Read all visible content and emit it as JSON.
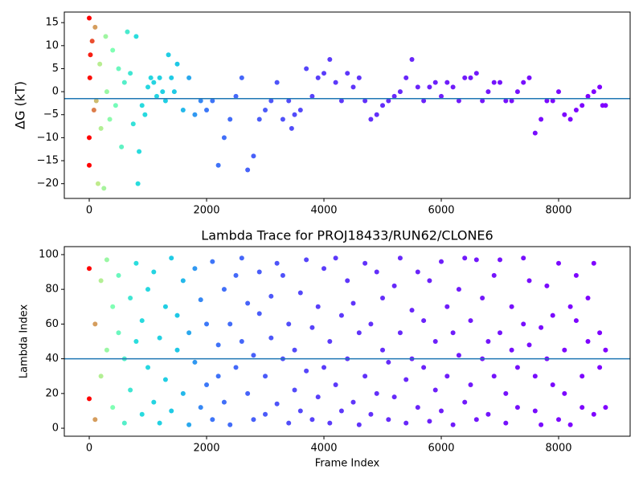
{
  "chart_data": [
    {
      "type": "scatter",
      "ylabel": "ΔG (kT)",
      "xlim": [
        -425,
        9219
      ],
      "xticks": [
        0,
        2000,
        4000,
        6000,
        8000
      ],
      "ylim": [
        -23.2,
        17.3
      ],
      "yticks": [
        {
          "value": -20,
          "label": "−20"
        },
        {
          "value": -15,
          "label": "−15"
        },
        {
          "value": -10,
          "label": "−10"
        },
        {
          "value": -5,
          "label": "−5"
        },
        0,
        5,
        10,
        15
      ],
      "hline": {
        "value": -1.5,
        "color": "#1f77b4"
      },
      "color_stops": [
        {
          "x": 0,
          "color": "#ff0000"
        },
        {
          "x": 150,
          "color": "#c0eb8c"
        },
        {
          "x": 400,
          "color": "#80ffb4"
        },
        {
          "x": 800,
          "color": "#2adddd"
        },
        {
          "x": 1500,
          "color": "#1ec8e6"
        },
        {
          "x": 2000,
          "color": "#3c78f8"
        },
        {
          "x": 4000,
          "color": "#5a3cfa"
        },
        {
          "x": 6000,
          "color": "#6e1efa"
        },
        {
          "x": 8800,
          "color": "#8000ff"
        }
      ],
      "x": [
        0,
        0,
        0,
        10,
        20,
        50,
        80,
        100,
        120,
        150,
        180,
        200,
        250,
        280,
        300,
        350,
        400,
        450,
        500,
        550,
        600,
        650,
        700,
        750,
        800,
        830,
        850,
        900,
        950,
        1000,
        1050,
        1100,
        1150,
        1200,
        1250,
        1300,
        1350,
        1400,
        1450,
        1500,
        1600,
        1700,
        1800,
        1900,
        2000,
        2100,
        2200,
        2300,
        2400,
        2500,
        2600,
        2700,
        2800,
        2900,
        3000,
        3100,
        3200,
        3300,
        3400,
        3450,
        3500,
        3600,
        3700,
        3800,
        3900,
        4000,
        4100,
        4200,
        4300,
        4400,
        4500,
        4600,
        4700,
        4800,
        4900,
        5000,
        5100,
        5200,
        5300,
        5400,
        5500,
        5600,
        5700,
        5800,
        5900,
        6000,
        6100,
        6200,
        6300,
        6400,
        6500,
        6600,
        6700,
        6800,
        6900,
        7000,
        7100,
        7200,
        7300,
        7400,
        7500,
        7600,
        7700,
        7800,
        7900,
        8000,
        8100,
        8200,
        8300,
        8400,
        8500,
        8600,
        8700,
        8750,
        8800
      ],
      "values": [
        16,
        -10,
        -16,
        3,
        8,
        11,
        -4,
        14,
        -2,
        -20,
        6,
        -8,
        -21,
        12,
        0,
        -6,
        9,
        -3,
        5,
        -12,
        2,
        13,
        4,
        -7,
        12,
        -20,
        -13,
        -3,
        -5,
        1,
        3,
        2,
        -1,
        3,
        0,
        -2,
        8,
        3,
        0,
        6,
        -4,
        3,
        -5,
        -2,
        -4,
        -2,
        -16,
        -10,
        -6,
        -1,
        3,
        -17,
        -14,
        -6,
        -4,
        -2,
        2,
        -6,
        -2,
        -8,
        -5,
        -4,
        5,
        -1,
        3,
        4,
        7,
        2,
        -2,
        4,
        1,
        3,
        -2,
        -6,
        -5,
        -3,
        -2,
        -1,
        0,
        3,
        7,
        1,
        -2,
        1,
        2,
        -1,
        2,
        1,
        -2,
        3,
        3,
        4,
        -2,
        0,
        2,
        2,
        -2,
        -2,
        0,
        2,
        3,
        -9,
        -6,
        -2,
        -2,
        0,
        -5,
        -6,
        -4,
        -3,
        -1,
        0,
        1,
        -3,
        -3
      ]
    },
    {
      "type": "scatter",
      "title": "Lambda Trace for PROJ18433/RUN62/CLONE6",
      "xlabel": "Frame Index",
      "ylabel": "Lambda Index",
      "xlim": [
        -425,
        9219
      ],
      "xticks": [
        0,
        2000,
        4000,
        6000,
        8000
      ],
      "ylim": [
        -4.6,
        104.6
      ],
      "yticks": [
        0,
        20,
        40,
        60,
        80,
        100
      ],
      "hline": {
        "value": 40,
        "color": "#1f77b4"
      },
      "color_stops": [
        {
          "x": 0,
          "color": "#ff0000"
        },
        {
          "x": 150,
          "color": "#c0eb8c"
        },
        {
          "x": 400,
          "color": "#80ffb4"
        },
        {
          "x": 800,
          "color": "#2adddd"
        },
        {
          "x": 1500,
          "color": "#1ec8e6"
        },
        {
          "x": 2000,
          "color": "#3c78f8"
        },
        {
          "x": 4000,
          "color": "#5a3cfa"
        },
        {
          "x": 6000,
          "color": "#6e1efa"
        },
        {
          "x": 8800,
          "color": "#8000ff"
        }
      ],
      "x": [
        0,
        0,
        100,
        100,
        200,
        200,
        300,
        300,
        400,
        400,
        500,
        500,
        600,
        600,
        700,
        700,
        800,
        800,
        900,
        900,
        1000,
        1000,
        1100,
        1100,
        1200,
        1200,
        1300,
        1300,
        1400,
        1400,
        1500,
        1500,
        1600,
        1600,
        1700,
        1700,
        1800,
        1800,
        1900,
        1900,
        2000,
        2000,
        2100,
        2100,
        2200,
        2200,
        2300,
        2300,
        2400,
        2400,
        2500,
        2500,
        2600,
        2600,
        2700,
        2700,
        2800,
        2800,
        2900,
        2900,
        3000,
        3000,
        3100,
        3100,
        3200,
        3200,
        3300,
        3300,
        3400,
        3400,
        3500,
        3500,
        3600,
        3600,
        3700,
        3700,
        3800,
        3800,
        3900,
        3900,
        4000,
        4000,
        4100,
        4100,
        4200,
        4200,
        4300,
        4300,
        4400,
        4400,
        4500,
        4500,
        4600,
        4600,
        4700,
        4700,
        4800,
        4800,
        4900,
        4900,
        5000,
        5000,
        5100,
        5100,
        5200,
        5200,
        5300,
        5300,
        5400,
        5400,
        5500,
        5500,
        5600,
        5600,
        5700,
        5700,
        5800,
        5800,
        5900,
        5900,
        6000,
        6000,
        6100,
        6100,
        6200,
        6200,
        6300,
        6300,
        6400,
        6400,
        6500,
        6500,
        6600,
        6600,
        6700,
        6700,
        6800,
        6800,
        6900,
        6900,
        7000,
        7000,
        7100,
        7100,
        7200,
        7200,
        7300,
        7300,
        7400,
        7400,
        7500,
        7500,
        7600,
        7600,
        7700,
        7700,
        7800,
        7800,
        7900,
        7900,
        8000,
        8000,
        8100,
        8100,
        8200,
        8200,
        8300,
        8300,
        8400,
        8400,
        8500,
        8500,
        8600,
        8600,
        8700,
        8700,
        8800,
        8800
      ],
      "values": [
        17,
        92,
        60,
        5,
        85,
        30,
        45,
        97,
        12,
        70,
        55,
        88,
        3,
        40,
        75,
        22,
        50,
        95,
        8,
        62,
        35,
        80,
        90,
        15,
        52,
        3,
        70,
        28,
        10,
        98,
        45,
        65,
        85,
        20,
        2,
        55,
        38,
        92,
        74,
        12,
        25,
        60,
        96,
        5,
        48,
        30,
        80,
        15,
        60,
        2,
        35,
        88,
        98,
        50,
        20,
        72,
        5,
        42,
        66,
        90,
        30,
        8,
        52,
        76,
        14,
        95,
        88,
        40,
        3,
        60,
        45,
        22,
        78,
        10,
        33,
        97,
        58,
        5,
        18,
        70,
        92,
        35,
        50,
        3,
        98,
        25,
        10,
        65,
        40,
        85,
        72,
        15,
        2,
        55,
        95,
        30,
        60,
        8,
        20,
        90,
        45,
        75,
        5,
        38,
        82,
        18,
        55,
        98,
        28,
        3,
        68,
        40,
        90,
        12,
        35,
        62,
        4,
        85,
        50,
        22,
        96,
        10,
        30,
        70,
        2,
        55,
        80,
        42,
        15,
        98,
        62,
        25,
        97,
        5,
        40,
        75,
        8,
        50,
        88,
        30,
        55,
        97,
        20,
        3,
        70,
        45,
        35,
        12,
        98,
        60,
        48,
        85,
        10,
        30,
        58,
        2,
        82,
        40,
        25,
        65,
        95,
        5,
        45,
        20,
        2,
        70,
        62,
        88,
        30,
        12,
        75,
        50,
        8,
        95,
        55,
        35,
        12,
        45
      ]
    }
  ]
}
